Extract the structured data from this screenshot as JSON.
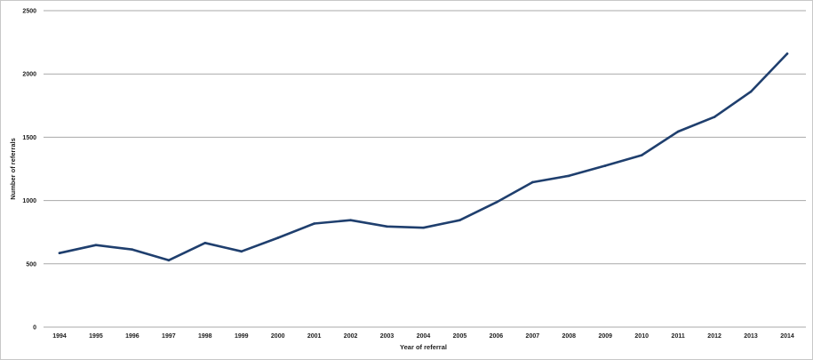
{
  "chart_data": {
    "type": "line",
    "title": "",
    "xlabel": "Year of referral",
    "ylabel": "Number of referrals",
    "ylim": [
      0,
      2500
    ],
    "yticks": [
      0,
      500,
      1000,
      1500,
      2000,
      2500
    ],
    "grid": true,
    "legend": "none",
    "line_color": "#1f3f6e",
    "categories": [
      "1994",
      "1995",
      "1996",
      "1997",
      "1998",
      "1999",
      "2000",
      "2001",
      "2002",
      "2003",
      "2004",
      "2005",
      "2006",
      "2007",
      "2008",
      "2009",
      "2010",
      "2011",
      "2012",
      "2013",
      "2014"
    ],
    "series": [
      {
        "values": [
          585,
          648,
          613,
          528,
          665,
          598,
          705,
          818,
          845,
          795,
          785,
          845,
          985,
          1145,
          1195,
          1275,
          1358,
          1545,
          1660,
          1860,
          2160
        ]
      }
    ]
  }
}
